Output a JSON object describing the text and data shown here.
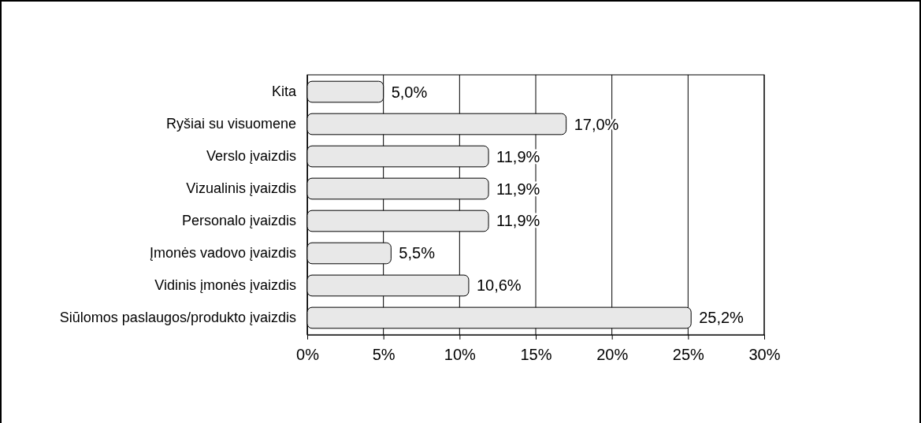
{
  "chart_data": {
    "type": "bar",
    "orientation": "horizontal",
    "categories": [
      "Kita",
      "Ryšiai su visuomene",
      "Verslo įvaizdis",
      "Vizualinis įvaizdis",
      "Personalo įvaizdis",
      "Įmonės vadovo įvaizdis",
      "Vidinis įmonės įvaizdis",
      "Siūlomos paslaugos/produkto įvaizdis"
    ],
    "values": [
      5.0,
      17.0,
      11.9,
      11.9,
      11.9,
      5.5,
      10.6,
      25.2
    ],
    "value_labels": [
      "5,0%",
      "17,0%",
      "11,9%",
      "11,9%",
      "11,9%",
      "5,5%",
      "10,6%",
      "25,2%"
    ],
    "color": "#e8e8e8",
    "xlim": [
      0,
      30
    ],
    "xticks": [
      {
        "value": 0,
        "label": "0%"
      },
      {
        "value": 5,
        "label": "5%"
      },
      {
        "value": 10,
        "label": "10%"
      },
      {
        "value": 15,
        "label": "15%"
      },
      {
        "value": 20,
        "label": "20%"
      },
      {
        "value": 25,
        "label": "25%"
      },
      {
        "value": 30,
        "label": "30%"
      }
    ],
    "grid": "x"
  }
}
